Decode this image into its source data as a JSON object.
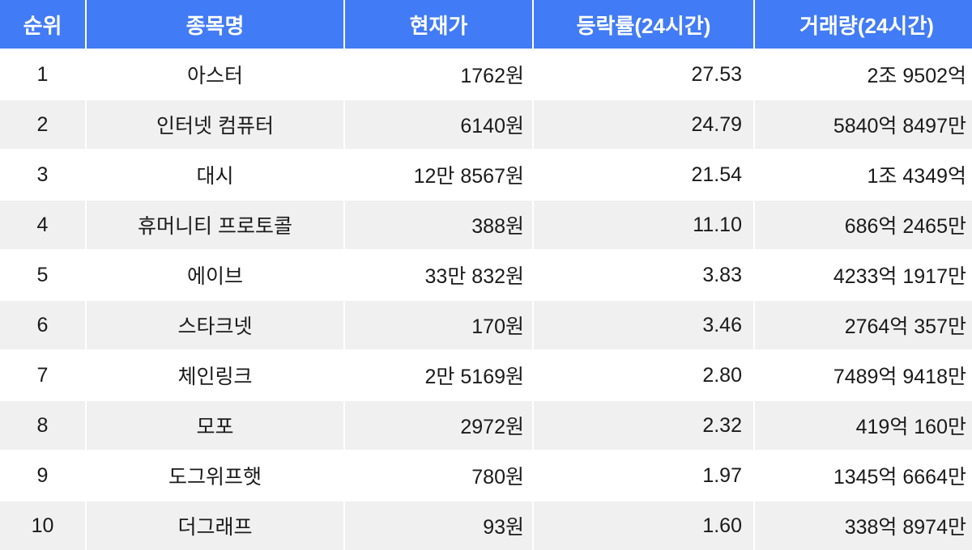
{
  "table": {
    "columns": [
      {
        "key": "rank",
        "label": "순위"
      },
      {
        "key": "name",
        "label": "종목명"
      },
      {
        "key": "price",
        "label": "현재가"
      },
      {
        "key": "change",
        "label": "등락률(24시간)"
      },
      {
        "key": "volume",
        "label": "거래량(24시간)"
      }
    ],
    "rows": [
      {
        "rank": "1",
        "name": "아스터",
        "price": "1762원",
        "change": "27.53",
        "volume": "2조 9502억"
      },
      {
        "rank": "2",
        "name": "인터넷 컴퓨터",
        "price": "6140원",
        "change": "24.79",
        "volume": "5840억 8497만"
      },
      {
        "rank": "3",
        "name": "대시",
        "price": "12만 8567원",
        "change": "21.54",
        "volume": "1조 4349억"
      },
      {
        "rank": "4",
        "name": "휴머니티 프로토콜",
        "price": "388원",
        "change": "11.10",
        "volume": "686억 2465만"
      },
      {
        "rank": "5",
        "name": "에이브",
        "price": "33만 832원",
        "change": "3.83",
        "volume": "4233억 1917만"
      },
      {
        "rank": "6",
        "name": "스타크넷",
        "price": "170원",
        "change": "3.46",
        "volume": "2764억 357만"
      },
      {
        "rank": "7",
        "name": "체인링크",
        "price": "2만 5169원",
        "change": "2.80",
        "volume": "7489억 9418만"
      },
      {
        "rank": "8",
        "name": "모포",
        "price": "2972원",
        "change": "2.32",
        "volume": "419억 160만"
      },
      {
        "rank": "9",
        "name": "도그위프햇",
        "price": "780원",
        "change": "1.97",
        "volume": "1345억 6664만"
      },
      {
        "rank": "10",
        "name": "더그래프",
        "price": "93원",
        "change": "1.60",
        "volume": "338억 8974만"
      }
    ]
  },
  "colors": {
    "header_bg": "#417bf5",
    "header_text": "#ffffff",
    "stripe_bg": "#f0f0f0",
    "row_bg": "#ffffff",
    "body_text": "#1a1a1a"
  },
  "chart_data": {
    "type": "table",
    "title": "",
    "columns": [
      "순위",
      "종목명",
      "현재가",
      "등락률(24시간)",
      "거래량(24시간)"
    ],
    "rows": [
      [
        "1",
        "아스터",
        "1762원",
        27.53,
        "2조 9502억"
      ],
      [
        "2",
        "인터넷 컴퓨터",
        "6140원",
        24.79,
        "5840억 8497만"
      ],
      [
        "3",
        "대시",
        "12만 8567원",
        21.54,
        "1조 4349억"
      ],
      [
        "4",
        "휴머니티 프로토콜",
        "388원",
        11.1,
        "686억 2465만"
      ],
      [
        "5",
        "에이브",
        "33만 832원",
        3.83,
        "4233억 1917만"
      ],
      [
        "6",
        "스타크넷",
        "170원",
        3.46,
        "2764억 357만"
      ],
      [
        "7",
        "체인링크",
        "2만 5169원",
        2.8,
        "7489억 9418만"
      ],
      [
        "8",
        "모포",
        "2972원",
        2.32,
        "419억 160만"
      ],
      [
        "9",
        "도그위프햇",
        "780원",
        1.97,
        "1345억 6664만"
      ],
      [
        "10",
        "더그래프",
        "93원",
        1.6,
        "338억 8974만"
      ]
    ]
  }
}
